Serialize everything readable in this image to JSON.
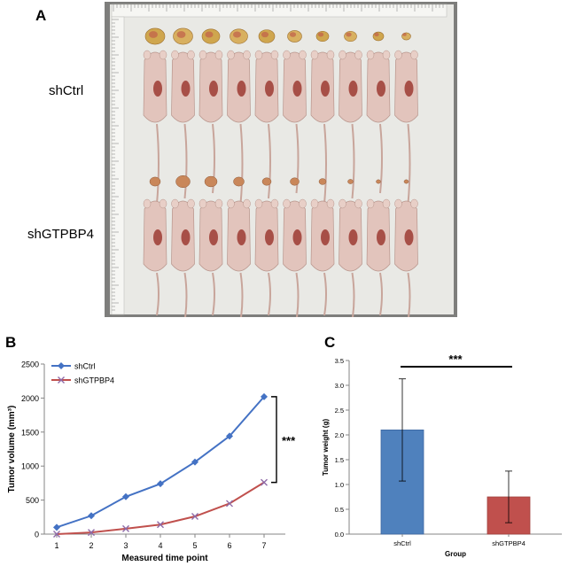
{
  "panels": {
    "a": {
      "letter": "A",
      "group_top": "shCtrl",
      "group_bottom": "shGTPBP4"
    },
    "b": {
      "letter": "B"
    },
    "c": {
      "letter": "C"
    }
  },
  "photo": {
    "tumor_count_per_row": 10,
    "mouse_count_per_row": 10
  },
  "chart_data": [
    {
      "type": "line",
      "x": [
        1,
        2,
        3,
        4,
        5,
        6,
        7
      ],
      "series": [
        {
          "name": "shCtrl",
          "values": [
            100,
            270,
            550,
            740,
            1060,
            1440,
            2020
          ],
          "color": "#4472C4",
          "marker": "diamond"
        },
        {
          "name": "shGTPBP4",
          "values": [
            0,
            25,
            80,
            140,
            260,
            450,
            760
          ],
          "color": "#C0504D",
          "marker": "x"
        }
      ],
      "xlabel": "Measured time point",
      "ylabel": "Tumor volume (mm³)",
      "ylim": [
        0,
        2500
      ],
      "yticks": [
        0,
        500,
        1000,
        1500,
        2000,
        2500
      ],
      "legend": "top-left",
      "annotation": "***"
    },
    {
      "type": "bar",
      "categories": [
        "shCtrl",
        "shGTPBP4"
      ],
      "values": [
        2.1,
        0.75
      ],
      "errors": [
        1.03,
        0.52
      ],
      "colors": [
        "#4F81BD",
        "#C0504D"
      ],
      "xlabel": "Group",
      "ylabel": "Tumor weight (g)",
      "ylim": [
        0,
        3.5
      ],
      "yticks": [
        "0.0",
        "0.5",
        "1.0",
        "1.5",
        "2.0",
        "2.5",
        "3.0",
        "3.5"
      ],
      "annotation": "***"
    }
  ]
}
